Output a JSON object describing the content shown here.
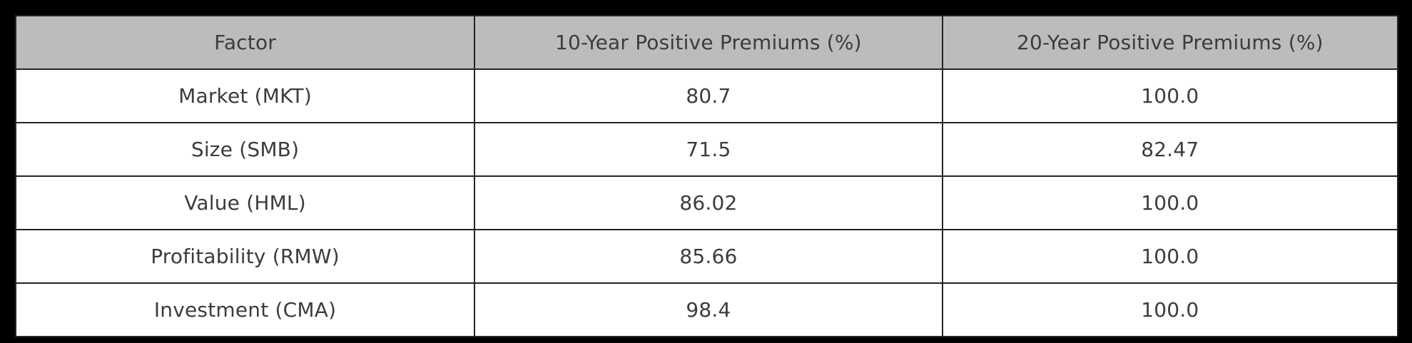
{
  "chart_data": {
    "type": "table",
    "columns": [
      "Factor",
      "10-Year Positive Premiums (%)",
      "20-Year Positive Premiums (%)"
    ],
    "rows": [
      [
        "Market (MKT)",
        "80.7",
        "100.0"
      ],
      [
        "Size (SMB)",
        "71.5",
        "82.47"
      ],
      [
        "Value (HML)",
        "86.02",
        "100.0"
      ],
      [
        "Profitability (RMW)",
        "85.66",
        "100.0"
      ],
      [
        "Investment (CMA)",
        "98.4",
        "100.0"
      ]
    ],
    "layout": {
      "header_position": "top",
      "cell_alignment": "center",
      "grid": "on"
    }
  },
  "colors": {
    "background": "#000000",
    "header_fill": "#bcbcbc",
    "cell_fill": "#ffffff",
    "border": "#242424",
    "text": "#3c3c3c"
  }
}
